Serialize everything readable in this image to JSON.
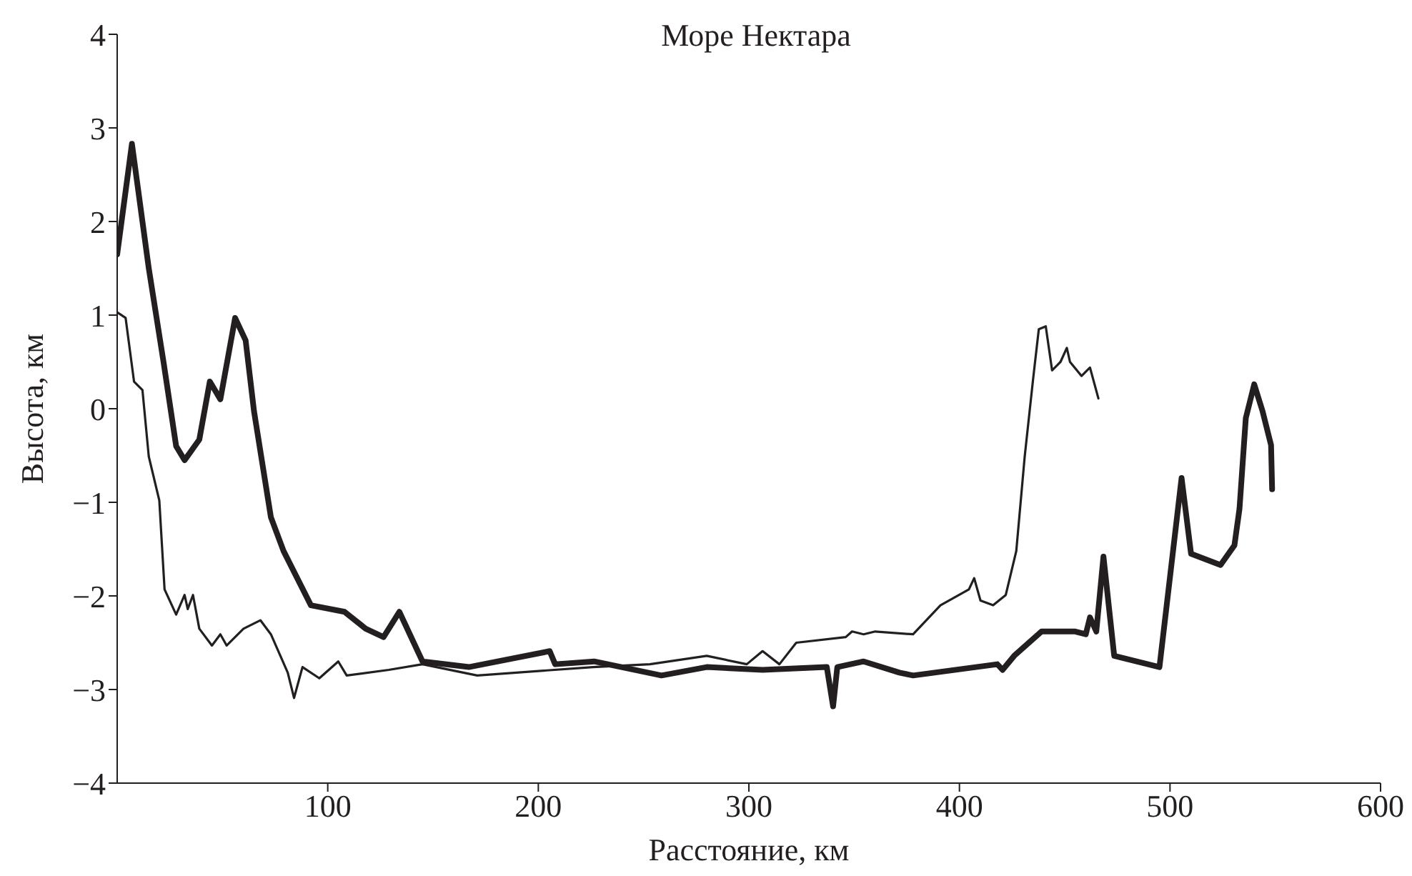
{
  "chart_data": {
    "type": "line",
    "title": "Море Нектара",
    "xlabel": "Расстояние, км",
    "ylabel": "Высота, км",
    "xlim": [
      0,
      600
    ],
    "xticks": [
      100,
      200,
      300,
      400,
      500,
      600
    ],
    "ylim": [
      -4,
      4
    ],
    "yticks": [
      {
        "value": -4,
        "label": "−4"
      },
      {
        "value": -3,
        "label": "−3"
      },
      {
        "value": -2,
        "label": "−2"
      },
      {
        "value": -1,
        "label": "−1"
      },
      0,
      1,
      2,
      3,
      4
    ],
    "grid": false,
    "legend": false,
    "marker": "none",
    "line_style": "solid",
    "series": [
      {
        "color": "#231f20",
        "x": [
          0,
          7,
          15,
          22,
          28,
          32,
          39,
          44,
          49,
          56,
          61,
          65,
          73,
          79,
          92,
          108,
          118,
          126.5,
          134,
          145,
          167,
          205.4,
          208,
          226.5,
          258.5,
          280,
          306.5,
          337,
          340,
          342,
          354.5,
          371.5,
          378,
          418,
          420.5,
          426,
          439,
          455,
          460,
          462,
          465,
          468.4,
          473.5,
          495,
          505.5,
          510,
          524,
          530.6,
          533,
          536,
          540,
          544,
          548,
          548.5
        ],
        "values": [
          1.65,
          2.83,
          1.5,
          0.5,
          -0.4,
          -0.55,
          -0.33,
          0.29,
          0.1,
          0.97,
          0.73,
          -0.03,
          -1.16,
          -1.52,
          -2.1,
          -2.17,
          -2.35,
          -2.44,
          -2.17,
          -2.7,
          -2.76,
          -2.59,
          -2.73,
          -2.7,
          -2.85,
          -2.76,
          -2.79,
          -2.76,
          -3.18,
          -2.76,
          -2.7,
          -2.82,
          -2.85,
          -2.73,
          -2.79,
          -2.64,
          -2.38,
          -2.38,
          -2.41,
          -2.23,
          -2.38,
          -1.58,
          -2.64,
          -2.76,
          -0.74,
          -1.55,
          -1.67,
          -1.46,
          -1.07,
          -0.1,
          0.26,
          -0.03,
          -0.39,
          -0.86
        ]
      },
      {
        "color": "#231f20",
        "x": [
          0,
          4,
          8,
          12,
          15,
          20,
          22.5,
          28,
          32,
          33.5,
          36,
          39,
          45,
          49,
          52,
          60,
          68,
          73,
          81,
          84,
          88,
          96,
          105,
          109,
          129,
          145,
          171,
          226,
          253,
          280,
          299,
          306.5,
          314.5,
          322.5,
          346,
          349,
          354.5,
          360,
          378,
          391,
          404.5,
          407,
          410,
          416,
          422,
          427,
          431,
          435,
          437.7,
          441,
          444,
          448,
          451,
          452.5,
          458,
          462,
          466
        ],
        "values": [
          1.03,
          0.97,
          0.29,
          0.2,
          -0.51,
          -0.98,
          -1.93,
          -2.2,
          -1.99,
          -2.14,
          -1.99,
          -2.35,
          -2.53,
          -2.41,
          -2.53,
          -2.35,
          -2.26,
          -2.41,
          -2.82,
          -3.09,
          -2.76,
          -2.88,
          -2.7,
          -2.85,
          -2.79,
          -2.73,
          -2.85,
          -2.76,
          -2.73,
          -2.64,
          -2.73,
          -2.59,
          -2.73,
          -2.5,
          -2.44,
          -2.38,
          -2.41,
          -2.38,
          -2.41,
          -2.1,
          -1.93,
          -1.81,
          -2.05,
          -2.1,
          -1.99,
          -1.52,
          -0.51,
          0.32,
          0.85,
          0.88,
          0.41,
          0.5,
          0.65,
          0.5,
          0.35,
          0.44,
          0.11
        ]
      }
    ]
  }
}
